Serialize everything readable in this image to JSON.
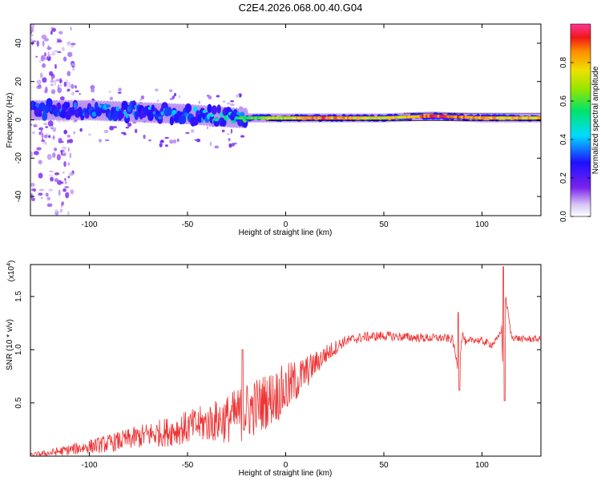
{
  "page": {
    "title": "C2E4.2026.068.00.40.G04"
  },
  "chart_data": [
    {
      "type": "heatmap",
      "name": "spectrogram",
      "xlabel": "Height of straight line (km)",
      "ylabel": "Frequency (Hz)",
      "xlim": [
        -130,
        130
      ],
      "ylim": [
        -50,
        50
      ],
      "xticks": [
        -100,
        -50,
        0,
        50,
        100
      ],
      "yticks": [
        -40,
        -20,
        0,
        20,
        40
      ],
      "colorbar": {
        "label": "Normalized spectral amplitude",
        "range": [
          0,
          1
        ],
        "ticks": [
          0.0,
          0.2,
          0.4,
          0.6,
          0.8
        ],
        "tick_labels": [
          "0.0",
          "0.2",
          "0.4",
          "0.6",
          "0.8"
        ]
      },
      "band_center_hz": [
        {
          "x": -125,
          "f": 5
        },
        {
          "x": -100,
          "f": 5
        },
        {
          "x": -75,
          "f": 4
        },
        {
          "x": -50,
          "f": 3
        },
        {
          "x": -25,
          "f": 1
        },
        {
          "x": 0,
          "f": 1
        },
        {
          "x": 25,
          "f": 1
        },
        {
          "x": 50,
          "f": 1
        },
        {
          "x": 75,
          "f": 2
        },
        {
          "x": 100,
          "f": 1
        },
        {
          "x": 130,
          "f": 1
        }
      ],
      "band_amplitude": [
        {
          "x": -125,
          "a": 0.35
        },
        {
          "x": -100,
          "a": 0.35
        },
        {
          "x": -75,
          "a": 0.4
        },
        {
          "x": -50,
          "a": 0.4
        },
        {
          "x": -20,
          "a": 0.6
        },
        {
          "x": 0,
          "a": 0.75
        },
        {
          "x": 20,
          "a": 0.9
        },
        {
          "x": 50,
          "a": 0.75
        },
        {
          "x": 75,
          "a": 0.95
        },
        {
          "x": 100,
          "a": 0.85
        },
        {
          "x": 130,
          "a": 0.8
        }
      ]
    },
    {
      "type": "line",
      "name": "snr",
      "xlabel": "Height of straight line (km)",
      "ylabel": "SNR (10 * v/v)",
      "multiplier_label": "(x10",
      "multiplier_exponent": "4",
      "multiplier_close": ")",
      "xlim": [
        -130,
        130
      ],
      "ylim": [
        0,
        1.8
      ],
      "xticks": [
        -100,
        -50,
        0,
        50,
        100
      ],
      "yticks": [
        0.5,
        1.0,
        1.5
      ],
      "ytick_labels": [
        "0.5",
        "1.0",
        "1.5"
      ],
      "color": "#ee3333",
      "x": [
        -130,
        -120,
        -110,
        -100,
        -90,
        -80,
        -70,
        -60,
        -50,
        -40,
        -30,
        -20,
        -10,
        0,
        10,
        20,
        30,
        40,
        50,
        60,
        70,
        80,
        85,
        88,
        90,
        92,
        95,
        100,
        105,
        108,
        110,
        111,
        112,
        115,
        120,
        130
      ],
      "y": [
        0.01,
        0.03,
        0.06,
        0.09,
        0.12,
        0.16,
        0.2,
        0.23,
        0.27,
        0.31,
        0.35,
        0.42,
        0.52,
        0.62,
        0.78,
        0.95,
        1.08,
        1.12,
        1.13,
        1.12,
        1.11,
        1.11,
        1.1,
        0.8,
        1.15,
        1.05,
        1.1,
        1.08,
        1.05,
        1.1,
        1.2,
        0.55,
        1.5,
        1.12,
        1.1,
        1.1
      ],
      "spikes": [
        {
          "x": -22,
          "y": 1.0
        },
        {
          "x": 88,
          "y": 1.35
        },
        {
          "x": 88.5,
          "y": 0.62
        },
        {
          "x": 111,
          "y": 1.78
        },
        {
          "x": 111.5,
          "y": 0.52
        }
      ],
      "noise_amplitude": [
        {
          "x": -130,
          "a": 0.02
        },
        {
          "x": -80,
          "a": 0.1
        },
        {
          "x": -40,
          "a": 0.18
        },
        {
          "x": -20,
          "a": 0.28
        },
        {
          "x": 0,
          "a": 0.25
        },
        {
          "x": 15,
          "a": 0.12
        },
        {
          "x": 30,
          "a": 0.05
        },
        {
          "x": 130,
          "a": 0.03
        }
      ]
    }
  ]
}
